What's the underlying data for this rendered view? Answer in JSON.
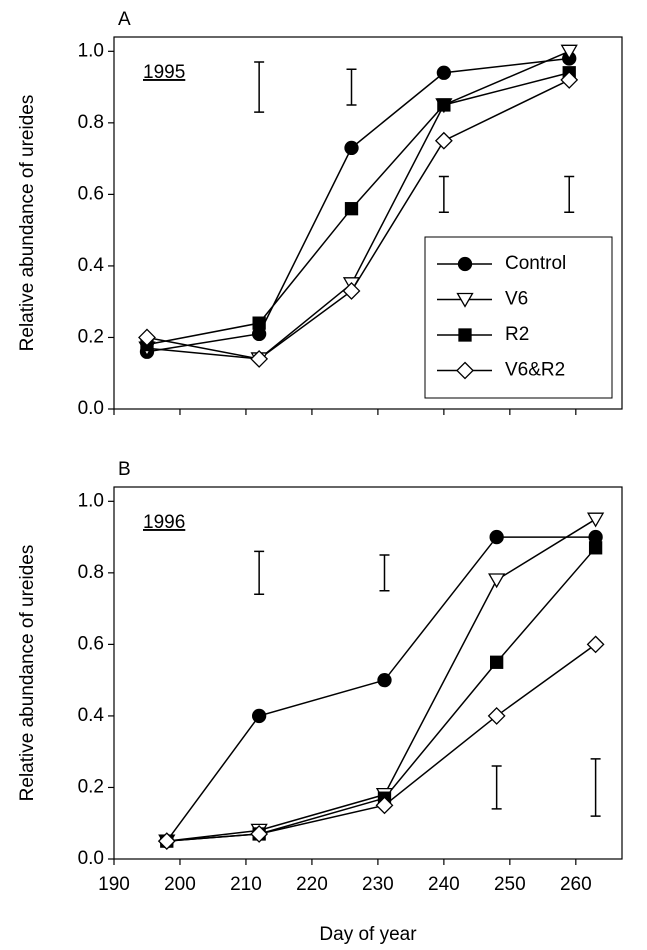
{
  "chart_data": [
    {
      "type": "line",
      "panel_label": "A",
      "year_label": "1995",
      "ylabel": "Relative abundance of ureides",
      "xlim": [
        190,
        267
      ],
      "xticks": [
        190,
        200,
        210,
        220,
        230,
        240,
        250,
        260
      ],
      "show_xtick_labels": false,
      "ylim": [
        0,
        1.04
      ],
      "yticks": [
        {
          "value": 0,
          "label": "0.0"
        },
        {
          "value": 0.2,
          "label": "0.2"
        },
        {
          "value": 0.4,
          "label": "0.4"
        },
        {
          "value": 0.6,
          "label": "0.6"
        },
        {
          "value": 0.8,
          "label": "0.8"
        },
        {
          "value": 1,
          "label": "1.0"
        }
      ],
      "x": [
        195,
        212,
        226,
        240,
        259
      ],
      "series": [
        {
          "name": "Control",
          "color": "#000000",
          "marker": "circle",
          "filled": true,
          "values": [
            0.16,
            0.21,
            0.73,
            0.94,
            0.98
          ]
        },
        {
          "name": "V6",
          "color": "#000000",
          "marker": "triangle-down",
          "filled": false,
          "values": [
            0.17,
            0.14,
            0.35,
            0.85,
            1.0
          ]
        },
        {
          "name": "R2",
          "color": "#000000",
          "marker": "square",
          "filled": true,
          "values": [
            0.18,
            0.24,
            0.56,
            0.85,
            0.94
          ]
        },
        {
          "name": "V6&R2",
          "color": "#000000",
          "marker": "diamond",
          "filled": false,
          "values": [
            0.2,
            0.14,
            0.33,
            0.75,
            0.92
          ]
        }
      ],
      "error_bars": {
        "x": [
          212,
          226,
          240,
          259
        ],
        "low": [
          0.83,
          0.85,
          0.55,
          0.55
        ],
        "high": [
          0.97,
          0.95,
          0.65,
          0.65
        ]
      },
      "legend": "lower right"
    },
    {
      "type": "line",
      "panel_label": "B",
      "year_label": "1996",
      "ylabel": "Relative abundance of ureides",
      "xlabel": "Day of year",
      "xlim": [
        190,
        267
      ],
      "xticks": [
        190,
        200,
        210,
        220,
        230,
        240,
        250,
        260
      ],
      "show_xtick_labels": true,
      "ylim": [
        0,
        1.04
      ],
      "yticks": [
        {
          "value": 0,
          "label": "0.0"
        },
        {
          "value": 0.2,
          "label": "0.2"
        },
        {
          "value": 0.4,
          "label": "0.4"
        },
        {
          "value": 0.6,
          "label": "0.6"
        },
        {
          "value": 0.8,
          "label": "0.8"
        },
        {
          "value": 1,
          "label": "1.0"
        }
      ],
      "x": [
        198,
        212,
        231,
        248,
        263
      ],
      "series": [
        {
          "color": "#000000",
          "marker": "circle",
          "filled": true,
          "values": [
            0.05,
            0.4,
            0.5,
            0.9,
            0.9
          ]
        },
        {
          "color": "#000000",
          "marker": "triangle-down",
          "filled": false,
          "values": [
            0.05,
            0.08,
            0.18,
            0.78,
            0.95
          ]
        },
        {
          "color": "#000000",
          "marker": "square",
          "filled": true,
          "values": [
            0.05,
            0.07,
            0.17,
            0.55,
            0.87
          ]
        },
        {
          "color": "#000000",
          "marker": "diamond",
          "filled": false,
          "values": [
            0.05,
            0.07,
            0.15,
            0.4,
            0.6
          ]
        }
      ],
      "error_bars": {
        "x": [
          212,
          231,
          248,
          263
        ],
        "low": [
          0.74,
          0.75,
          0.14,
          0.12
        ],
        "high": [
          0.86,
          0.85,
          0.26,
          0.28
        ]
      }
    }
  ]
}
